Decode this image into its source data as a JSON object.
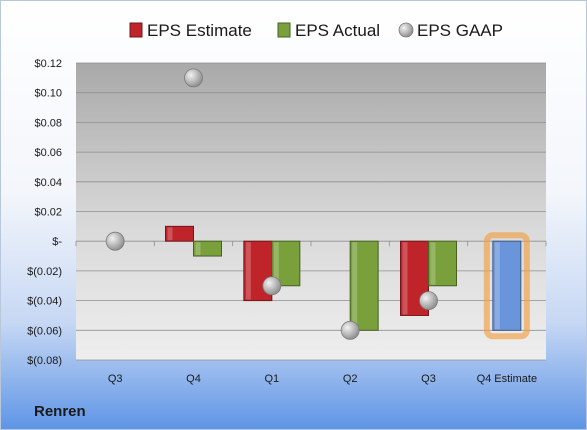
{
  "company": "Renren",
  "chart_data": {
    "type": "bar",
    "categories": [
      "Q3",
      "Q4",
      "Q1",
      "Q2",
      "Q3",
      "Q4 Estimate"
    ],
    "series": [
      {
        "name": "EPS Estimate",
        "values": [
          null,
          0.01,
          -0.04,
          null,
          -0.05,
          null
        ],
        "color": "#c0242b",
        "kind": "bar"
      },
      {
        "name": "EPS Actual",
        "values": [
          null,
          -0.01,
          -0.03,
          -0.06,
          -0.03,
          null
        ],
        "color": "#7aa03b",
        "kind": "bar"
      },
      {
        "name": "EPS GAAP",
        "values": [
          0.0,
          0.11,
          -0.03,
          -0.06,
          -0.04,
          null
        ],
        "color": "#a6a6a6",
        "kind": "scatter"
      }
    ],
    "forecast": {
      "category": "Q4 Estimate",
      "value": -0.06,
      "color": "#6a95da",
      "highlight": "#f2a043"
    },
    "ylim": [
      -0.08,
      0.12
    ],
    "yticks": [
      0.12,
      0.1,
      0.08,
      0.06,
      0.04,
      0.02,
      0,
      -0.02,
      -0.04,
      -0.06,
      -0.08
    ],
    "ytick_labels": [
      "$0.12",
      "$0.10",
      "$0.08",
      "$0.06",
      "$0.04",
      "$0.02",
      "$-",
      "$(0.02)",
      "$(0.04)",
      "$(0.06)",
      "$(0.08)"
    ],
    "legend_position": "top",
    "grid": true
  }
}
